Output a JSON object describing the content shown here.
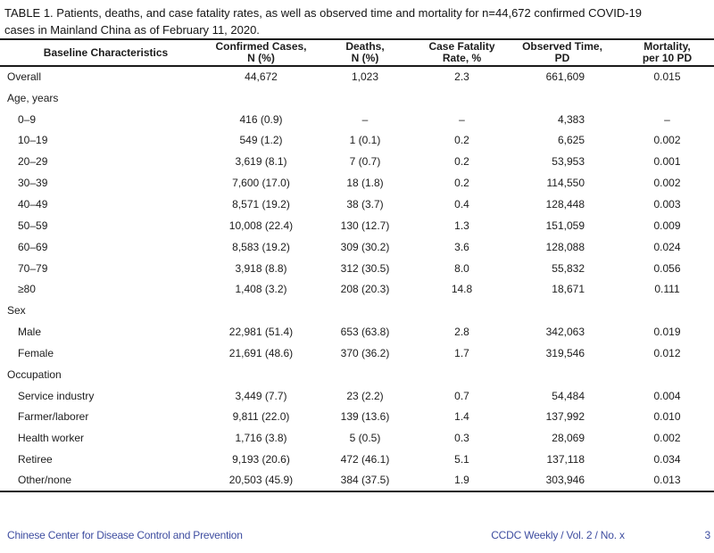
{
  "page": {
    "title_line1": "TABLE 1. Patients, deaths, and case fatality rates, as well as observed time and mortality for n=44,672 confirmed COVID-19",
    "title_line2": "cases in Mainland China as of February 11, 2020."
  },
  "table": {
    "columns": [
      {
        "id": "baseline_characteristics",
        "line1": "Baseline Characteristics",
        "line2": ""
      },
      {
        "id": "confirmed_cases",
        "line1": "Confirmed Cases,",
        "line2": "N (%)"
      },
      {
        "id": "deaths",
        "line1": "Deaths,",
        "line2": "N (%)"
      },
      {
        "id": "case_fatality_rate",
        "line1": "Case Fatality",
        "line2": "Rate, %"
      },
      {
        "id": "observed_time",
        "line1": "Observed Time,",
        "line2": "PD"
      },
      {
        "id": "mortality",
        "line1": "Mortality,",
        "line2": "per 10 PD"
      }
    ],
    "column_ids": [
      "confirmed-cases",
      "deaths",
      "case-fatality-rate",
      "observed-time",
      "mortality"
    ],
    "rows": [
      {
        "label": "Overall",
        "indent": 0,
        "section": false,
        "cells": [
          "44,672",
          "1,023",
          "2.3",
          "661,609",
          "0.015"
        ]
      },
      {
        "label": "Age, years",
        "indent": 0,
        "section": true,
        "cells": [
          "",
          "",
          "",
          "",
          ""
        ]
      },
      {
        "label": "0–9",
        "indent": 1,
        "section": false,
        "cells": [
          "416 (0.9)",
          "–",
          "–",
          "4,383",
          "–"
        ]
      },
      {
        "label": "10–19",
        "indent": 1,
        "section": false,
        "cells": [
          "549 (1.2)",
          "1 (0.1)",
          "0.2",
          "6,625",
          "0.002"
        ]
      },
      {
        "label": "20–29",
        "indent": 1,
        "section": false,
        "cells": [
          "3,619 (8.1)",
          "7 (0.7)",
          "0.2",
          "53,953",
          "0.001"
        ]
      },
      {
        "label": "30–39",
        "indent": 1,
        "section": false,
        "cells": [
          "7,600 (17.0)",
          "18 (1.8)",
          "0.2",
          "114,550",
          "0.002"
        ]
      },
      {
        "label": "40–49",
        "indent": 1,
        "section": false,
        "cells": [
          "8,571 (19.2)",
          "38 (3.7)",
          "0.4",
          "128,448",
          "0.003"
        ]
      },
      {
        "label": "50–59",
        "indent": 1,
        "section": false,
        "cells": [
          "10,008 (22.4)",
          "130 (12.7)",
          "1.3",
          "151,059",
          "0.009"
        ]
      },
      {
        "label": "60–69",
        "indent": 1,
        "section": false,
        "cells": [
          "8,583 (19.2)",
          "309 (30.2)",
          "3.6",
          "128,088",
          "0.024"
        ]
      },
      {
        "label": "70–79",
        "indent": 1,
        "section": false,
        "cells": [
          "3,918 (8.8)",
          "312 (30.5)",
          "8.0",
          "55,832",
          "0.056"
        ]
      },
      {
        "label": "≥80",
        "indent": 1,
        "section": false,
        "cells": [
          "1,408 (3.2)",
          "208 (20.3)",
          "14.8",
          "18,671",
          "0.111"
        ]
      },
      {
        "label": "Sex",
        "indent": 0,
        "section": true,
        "cells": [
          "",
          "",
          "",
          "",
          ""
        ]
      },
      {
        "label": "Male",
        "indent": 1,
        "section": false,
        "cells": [
          "22,981 (51.4)",
          "653 (63.8)",
          "2.8",
          "342,063",
          "0.019"
        ]
      },
      {
        "label": "Female",
        "indent": 1,
        "section": false,
        "cells": [
          "21,691 (48.6)",
          "370 (36.2)",
          "1.7",
          "319,546",
          "0.012"
        ]
      },
      {
        "label": "Occupation",
        "indent": 0,
        "section": true,
        "cells": [
          "",
          "",
          "",
          "",
          ""
        ]
      },
      {
        "label": "Service industry",
        "indent": 1,
        "section": false,
        "cells": [
          "3,449 (7.7)",
          "23 (2.2)",
          "0.7",
          "54,484",
          "0.004"
        ]
      },
      {
        "label": "Farmer/laborer",
        "indent": 1,
        "section": false,
        "cells": [
          "9,811 (22.0)",
          "139 (13.6)",
          "1.4",
          "137,992",
          "0.010"
        ]
      },
      {
        "label": "Health worker",
        "indent": 1,
        "section": false,
        "cells": [
          "1,716 (3.8)",
          "5 (0.5)",
          "0.3",
          "28,069",
          "0.002"
        ]
      },
      {
        "label": "Retiree",
        "indent": 1,
        "section": false,
        "cells": [
          "9,193 (20.6)",
          "472 (46.1)",
          "5.1",
          "137,118",
          "0.034"
        ]
      },
      {
        "label": "Other/none",
        "indent": 1,
        "section": false,
        "cells": [
          "20,503 (45.9)",
          "384 (37.5)",
          "1.9",
          "303,946",
          "0.013"
        ]
      }
    ]
  },
  "footer": {
    "publisher": "Chinese Center for Disease Control and Prevention",
    "journal": "CCDC Weekly / Vol. 2 / No. x",
    "page_number": "3"
  },
  "colors": {
    "text": "#1c1c1c",
    "border": "#1a1a1a",
    "footer_blue": "#3e4da0"
  }
}
